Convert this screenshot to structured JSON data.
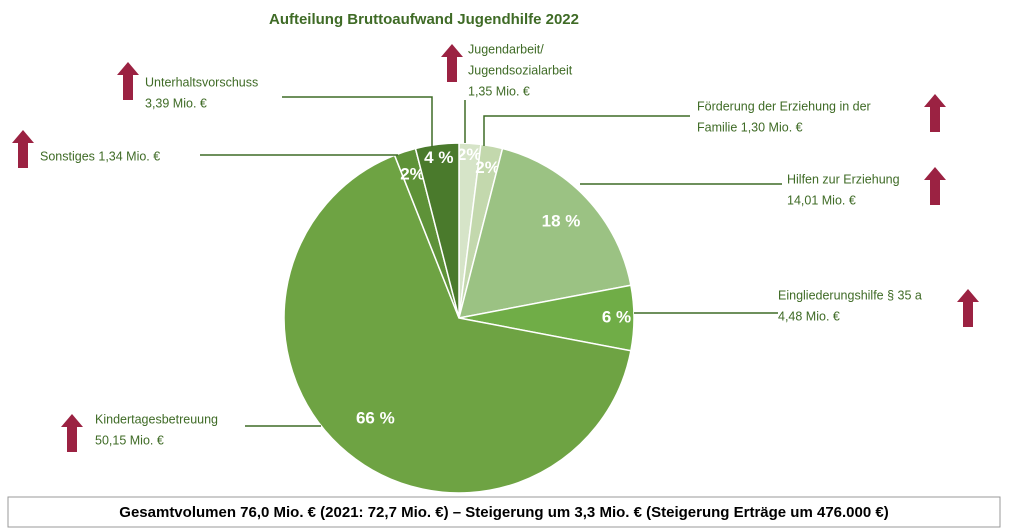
{
  "chart_data": {
    "type": "pie",
    "title": "Aufteilung Bruttoaufwand Jugendhilfe 2022",
    "values": [
      2,
      2,
      18,
      6,
      66,
      2,
      4
    ],
    "value_labels": [
      "2%",
      "2%",
      "18 %",
      "6 %",
      "66 %",
      "2%",
      "4 %"
    ],
    "colors": [
      "#d6e4c8",
      "#c3d8ad",
      "#9bc283",
      "#70ad47",
      "#6ea343",
      "#5e9238",
      "#4a7a2c"
    ],
    "labels": [
      [
        "Jugendarbeit/",
        "Jugendsozialarbeit",
        "1,35 Mio. €"
      ],
      [
        "Förderung der Erziehung in der",
        "Familie 1,30 Mio. €"
      ],
      [
        "Hilfen zur Erziehung",
        "14,01 Mio. €"
      ],
      [
        "Eingliederungshilfe § 35 a",
        "4,48 Mio. €"
      ],
      [
        "Kindertagesbetreuung",
        "50,15 Mio. €"
      ],
      [
        "Sonstiges 1,34 Mio. €"
      ],
      [
        "Unterhaltsvorschuss",
        "3,39 Mio. €"
      ]
    ],
    "footer": "Gesamtvolumen 76,0 Mio. € (2021: 72,7 Mio. €) – Steigerung um 3,3 Mio. € (Steigerung Erträge um 476.000 €)"
  }
}
